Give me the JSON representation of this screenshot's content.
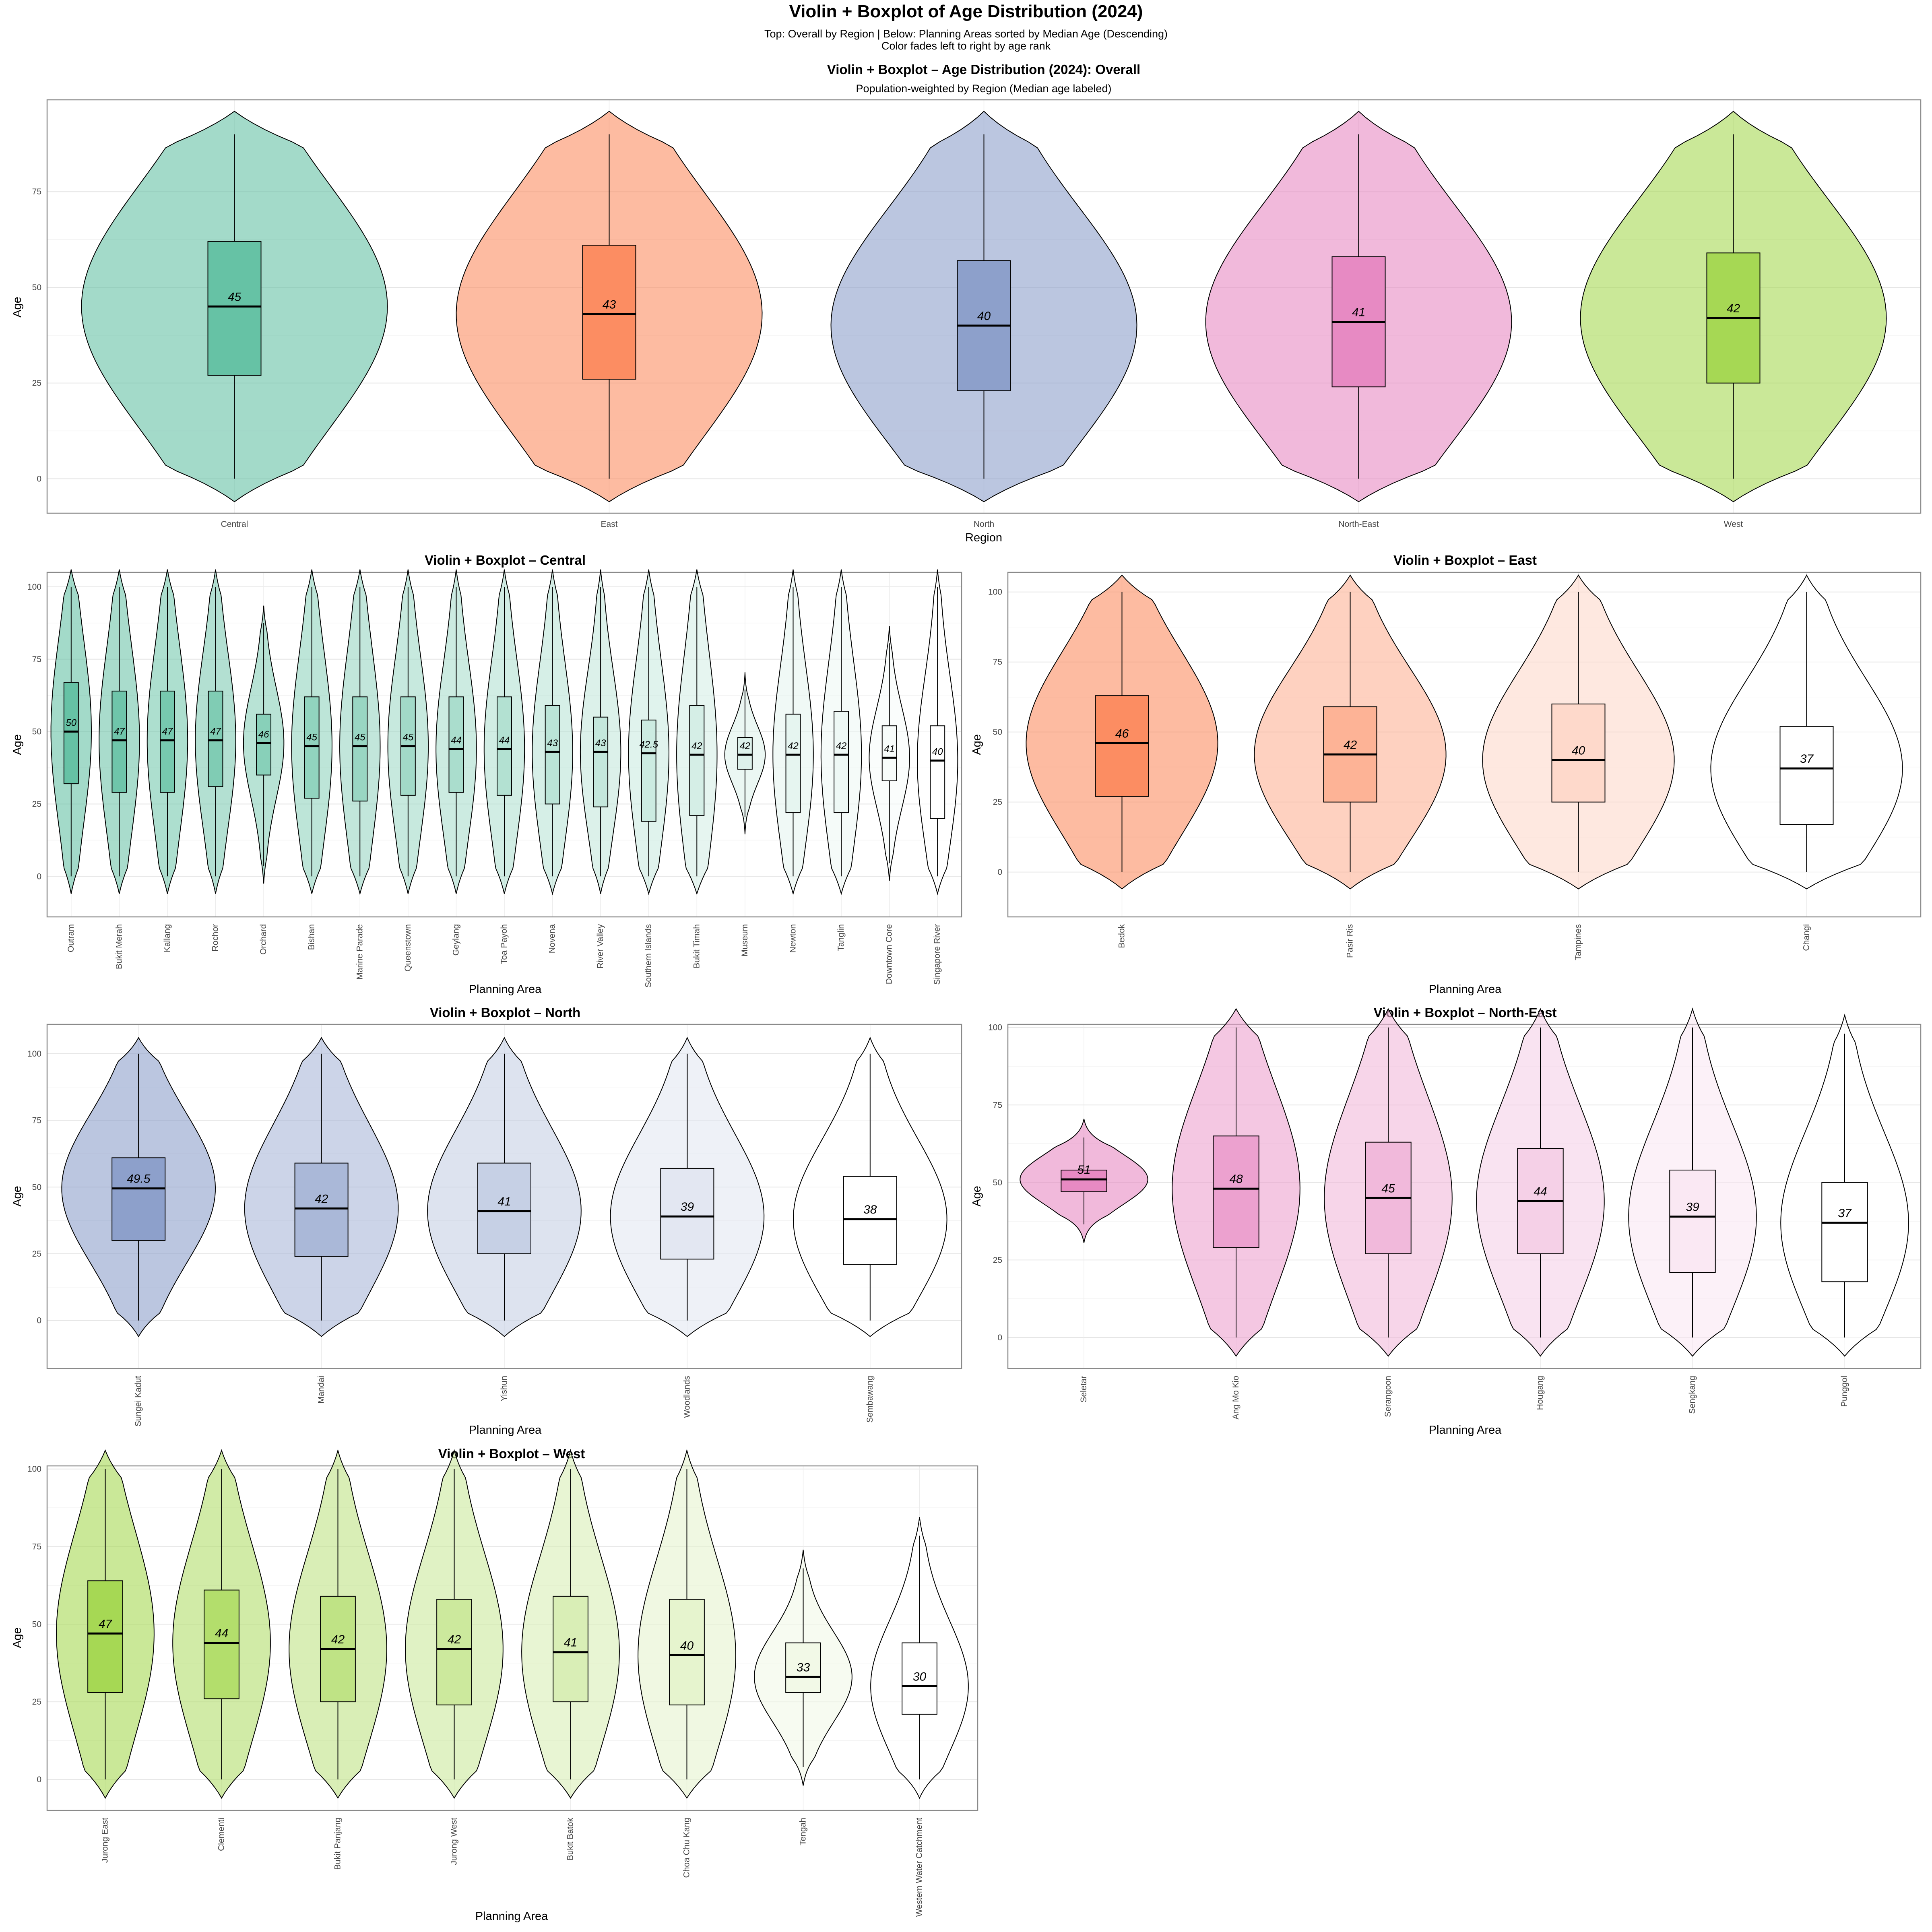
{
  "figure": {
    "title": "Violin + Boxplot of Age Distribution (2024)",
    "subtitle_line1": "Top: Overall by Region | Below: Planning Areas sorted by Median Age (Descending)",
    "subtitle_line2": "Color fades left to right by age rank"
  },
  "chart_data": [
    {
      "type": "violin",
      "title": "Violin + Boxplot – Age Distribution (2024): Overall",
      "subtitle": "Population-weighted by Region (Median age labeled)",
      "xlabel": "Region",
      "ylabel": "Age",
      "ylim": [
        -9,
        99
      ],
      "yticks": [
        0,
        25,
        50,
        75
      ],
      "grid": true,
      "categories": [
        "Central",
        "East",
        "North",
        "North-East",
        "West"
      ],
      "colors": [
        "#66c2a5",
        "#fc8d62",
        "#8da0cb",
        "#e78ac3",
        "#a6d854"
      ],
      "series": [
        {
          "q1": 27,
          "median": 45,
          "q3": 62,
          "whisker_low": 0,
          "whisker_high": 90,
          "median_label": "45"
        },
        {
          "q1": 26,
          "median": 43,
          "q3": 61,
          "whisker_low": 0,
          "whisker_high": 90,
          "median_label": "43"
        },
        {
          "q1": 23,
          "median": 40,
          "q3": 57,
          "whisker_low": 0,
          "whisker_high": 90,
          "median_label": "40"
        },
        {
          "q1": 24,
          "median": 41,
          "q3": 58,
          "whisker_low": 0,
          "whisker_high": 90,
          "median_label": "41"
        },
        {
          "q1": 25,
          "median": 42,
          "q3": 59,
          "whisker_low": 0,
          "whisker_high": 90,
          "median_label": "42"
        }
      ]
    },
    {
      "type": "violin",
      "title": "Violin + Boxplot – Central",
      "xlabel": "Planning Area",
      "ylabel": "Age",
      "ylim": [
        -14,
        105
      ],
      "yticks": [
        0,
        25,
        50,
        75,
        100
      ],
      "grid": true,
      "base_color": "#66c2a5",
      "categories": [
        "Outram",
        "Bukit Merah",
        "Kallang",
        "Rochor",
        "Orchard",
        "Bishan",
        "Marine Parade",
        "Queenstown",
        "Geylang",
        "Toa Payoh",
        "Novena",
        "River Valley",
        "Southern Islands",
        "Bukit Timah",
        "Museum",
        "Newton",
        "Tanglin",
        "Downtown Core",
        "Singapore River"
      ],
      "series": [
        {
          "q1": 32,
          "median": 50,
          "q3": 67,
          "median_label": "50"
        },
        {
          "q1": 29,
          "median": 47,
          "q3": 64,
          "median_label": "47"
        },
        {
          "q1": 29,
          "median": 47,
          "q3": 64,
          "median_label": "47"
        },
        {
          "q1": 31,
          "median": 47,
          "q3": 64,
          "median_label": "47"
        },
        {
          "q1": 35,
          "median": 46,
          "q3": 56,
          "median_label": "46"
        },
        {
          "q1": 27,
          "median": 45,
          "q3": 62,
          "median_label": "45"
        },
        {
          "q1": 26,
          "median": 45,
          "q3": 62,
          "median_label": "45"
        },
        {
          "q1": 28,
          "median": 45,
          "q3": 62,
          "median_label": "45"
        },
        {
          "q1": 29,
          "median": 44,
          "q3": 62,
          "median_label": "44"
        },
        {
          "q1": 28,
          "median": 44,
          "q3": 62,
          "median_label": "44"
        },
        {
          "q1": 25,
          "median": 43,
          "q3": 59,
          "median_label": "43"
        },
        {
          "q1": 24,
          "median": 43,
          "q3": 55,
          "median_label": "43"
        },
        {
          "q1": 19,
          "median": 42.5,
          "q3": 54,
          "median_label": "42.5"
        },
        {
          "q1": 21,
          "median": 42,
          "q3": 59,
          "median_label": "42"
        },
        {
          "q1": 37,
          "median": 42,
          "q3": 48,
          "median_label": "42"
        },
        {
          "q1": 22,
          "median": 42,
          "q3": 56,
          "median_label": "42"
        },
        {
          "q1": 22,
          "median": 42,
          "q3": 57,
          "median_label": "42"
        },
        {
          "q1": 33,
          "median": 41,
          "q3": 52,
          "median_label": "41"
        },
        {
          "q1": 20,
          "median": 40,
          "q3": 52,
          "median_label": "40"
        }
      ]
    },
    {
      "type": "violin",
      "title": "Violin + Boxplot – East",
      "xlabel": "Planning Area",
      "ylabel": "Age",
      "ylim": [
        -16,
        107
      ],
      "yticks": [
        0,
        25,
        50,
        75,
        100
      ],
      "grid": true,
      "base_color": "#fc8d62",
      "categories": [
        "Bedok",
        "Pasir Ris",
        "Tampines",
        "Changi"
      ],
      "series": [
        {
          "q1": 27,
          "median": 46,
          "q3": 63,
          "median_label": "46"
        },
        {
          "q1": 25,
          "median": 42,
          "q3": 59,
          "median_label": "42"
        },
        {
          "q1": 25,
          "median": 40,
          "q3": 60,
          "median_label": "40"
        },
        {
          "q1": 17,
          "median": 37,
          "q3": 52,
          "median_label": "37"
        }
      ]
    },
    {
      "type": "violin",
      "title": "Violin + Boxplot – North",
      "xlabel": "Planning Area",
      "ylabel": "Age",
      "ylim": [
        -18,
        111
      ],
      "yticks": [
        0,
        25,
        50,
        75,
        100
      ],
      "grid": true,
      "base_color": "#8da0cb",
      "categories": [
        "Sungei Kadut",
        "Mandai",
        "Yishun",
        "Woodlands",
        "Sembawang"
      ],
      "series": [
        {
          "q1": 30,
          "median": 49.5,
          "q3": 61,
          "median_label": "49.5"
        },
        {
          "q1": 24,
          "median": 42,
          "q3": 59,
          "median_label": "42"
        },
        {
          "q1": 25,
          "median": 41,
          "q3": 59,
          "median_label": "41"
        },
        {
          "q1": 23,
          "median": 39,
          "q3": 57,
          "median_label": "39"
        },
        {
          "q1": 21,
          "median": 38,
          "q3": 54,
          "median_label": "38"
        }
      ]
    },
    {
      "type": "violin",
      "title": "Violin + Boxplot – North-East",
      "xlabel": "Planning Area",
      "ylabel": "Age",
      "ylim": [
        -10,
        101
      ],
      "yticks": [
        0,
        25,
        50,
        75,
        100
      ],
      "grid": true,
      "base_color": "#e78ac3",
      "categories": [
        "Seletar",
        "Ang Mo Kio",
        "Serangoon",
        "Hougang",
        "Sengkang",
        "Punggol"
      ],
      "series": [
        {
          "q1": 47,
          "median": 51,
          "q3": 54,
          "median_label": "51"
        },
        {
          "q1": 29,
          "median": 48,
          "q3": 65,
          "median_label": "48"
        },
        {
          "q1": 27,
          "median": 45,
          "q3": 63,
          "median_label": "45"
        },
        {
          "q1": 27,
          "median": 44,
          "q3": 61,
          "median_label": "44"
        },
        {
          "q1": 21,
          "median": 39,
          "q3": 54,
          "median_label": "39"
        },
        {
          "q1": 18,
          "median": 37,
          "q3": 50,
          "median_label": "37"
        }
      ]
    },
    {
      "type": "violin",
      "title": "Violin + Boxplot – West",
      "xlabel": "Planning Area",
      "ylabel": "Age",
      "ylim": [
        -10,
        101
      ],
      "yticks": [
        0,
        25,
        50,
        75,
        100
      ],
      "grid": true,
      "base_color": "#a6d854",
      "categories": [
        "Jurong East",
        "Clementi",
        "Bukit Panjang",
        "Jurong West",
        "Bukit Batok",
        "Choa Chu Kang",
        "Tengah",
        "Western Water Catchment"
      ],
      "series": [
        {
          "q1": 28,
          "median": 47,
          "q3": 64,
          "median_label": "47"
        },
        {
          "q1": 26,
          "median": 44,
          "q3": 61,
          "median_label": "44"
        },
        {
          "q1": 25,
          "median": 42,
          "q3": 59,
          "median_label": "42"
        },
        {
          "q1": 24,
          "median": 42,
          "q3": 58,
          "median_label": "42"
        },
        {
          "q1": 25,
          "median": 41,
          "q3": 59,
          "median_label": "41"
        },
        {
          "q1": 24,
          "median": 40,
          "q3": 58,
          "median_label": "40"
        },
        {
          "q1": 28,
          "median": 33,
          "q3": 44,
          "median_label": "33"
        },
        {
          "q1": 21,
          "median": 30,
          "q3": 44,
          "median_label": "30"
        }
      ]
    }
  ]
}
